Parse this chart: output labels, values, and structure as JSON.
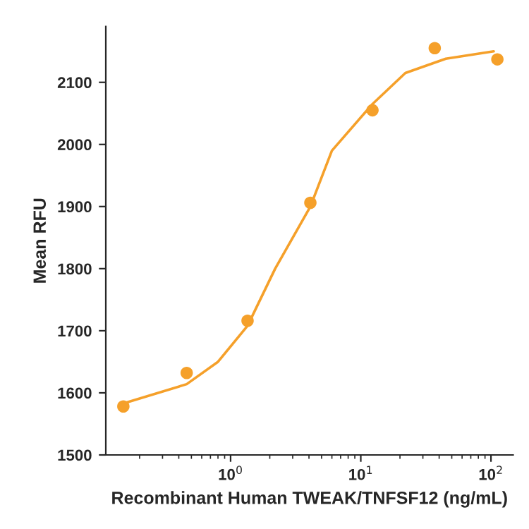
{
  "chart_data": {
    "type": "scatter",
    "xlabel": "Recombinant Human TWEAK/TNFSF12 (ng/mL)",
    "ylabel": "Mean RFU",
    "log": "x",
    "grid": false,
    "legend": false,
    "xlim": [
      0.11,
      148
    ],
    "xticks": [
      {
        "value": 1,
        "label": "10$^{0}$"
      },
      {
        "value": 10,
        "label": "10$^{1}$"
      },
      {
        "value": 100,
        "label": "10$^{2}$"
      }
    ],
    "ylim": [
      1500,
      2190
    ],
    "yticks": [
      1500,
      1600,
      1700,
      1800,
      1900,
      2000,
      2100
    ],
    "series": [
      {
        "marker": "circle",
        "color": "#f5a02a",
        "x": [
          0.15,
          0.46,
          1.35,
          4.1,
          12.3,
          37,
          112
        ],
        "values": [
          1578,
          1632,
          1716,
          1906,
          2055,
          2155,
          2137
        ]
      },
      {
        "type": "line",
        "color": "#f5a02a",
        "x": [
          0.15,
          0.46,
          0.8,
          1.35,
          2.2,
          4.1,
          6,
          12.3,
          22,
          45,
          105
        ],
        "values": [
          1583,
          1614,
          1650,
          1708,
          1800,
          1900,
          1990,
          2065,
          2115,
          2138,
          2150
        ]
      }
    ]
  }
}
